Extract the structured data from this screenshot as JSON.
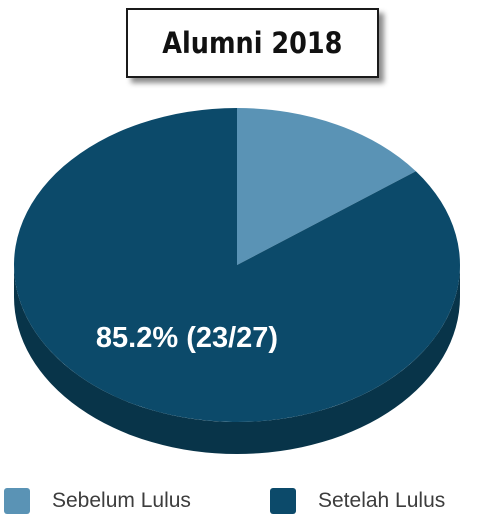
{
  "chart_data": {
    "type": "pie",
    "title": "Alumni 2018",
    "categories": [
      "Sebelum Lulus",
      "Setelah Lulus"
    ],
    "values": [
      4,
      23
    ],
    "colors": [
      "#5a93b5",
      "#0c4a6a"
    ],
    "data_labels": [
      "",
      "85.2% (23/27)"
    ],
    "legend": "bottom"
  },
  "colors": {
    "side_shade": "#083449",
    "side_shade_light": "#3f6f8b"
  }
}
